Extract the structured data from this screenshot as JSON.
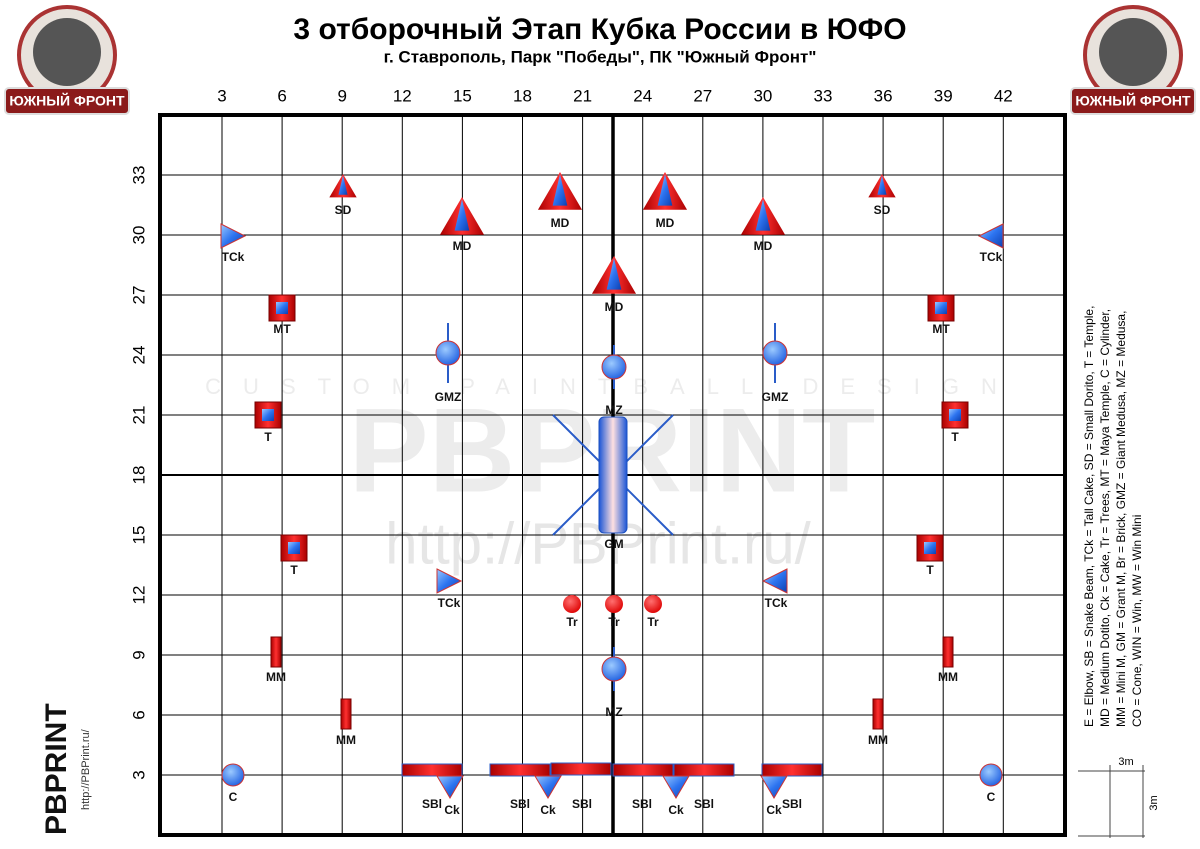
{
  "header": {
    "title": "3 отборочный Этап Кубка России в ЮФО",
    "subtitle": "г. Ставрополь, Парк \"Победы\", ПК \"Южный Фронт\""
  },
  "logos": {
    "left": "ЮЖНЫЙ ФРОНТ",
    "right": "ЮЖНЫЙ ФРОНТ"
  },
  "x_labels": [
    "3",
    "6",
    "9",
    "12",
    "15",
    "18",
    "21",
    "24",
    "27",
    "30",
    "33",
    "36",
    "39",
    "42"
  ],
  "y_labels": [
    "33",
    "30",
    "27",
    "24",
    "21",
    "18",
    "15",
    "12",
    "9",
    "6",
    "3"
  ],
  "bunkers": [
    "SD",
    "SD",
    "MD",
    "MD",
    "MD",
    "MD",
    "MD",
    "TCk",
    "TCk",
    "MT",
    "MT",
    "GMZ",
    "GMZ",
    "MZ",
    "T",
    "T",
    "GM",
    "T",
    "T",
    "TCk",
    "TCk",
    "Tr",
    "Tr",
    "Tr",
    "MZ",
    "MM",
    "MM",
    "MM",
    "MM",
    "C",
    "C",
    "SBl",
    "SBl",
    "SBl",
    "SBl",
    "SBl",
    "SBl",
    "Ck",
    "Ck",
    "Ck",
    "Ck"
  ],
  "watermark": {
    "brand": "PBPRINT",
    "tagline": "CUSTOM PAINTBALL DESIGN",
    "url": "http://PBPrint.ru/"
  },
  "legend": [
    "E = Elbow, SB = Snake Beam, TCk = Tall Cake, SD = Small Dorito, T = Temple,",
    "MD = Medium Dotito, Ck = Cake, Tr = Trees, MT = Maya Temple, C = Cylinder,",
    "MM = Mini M, GM = Grant M, Br = Brick, GMZ = Giant Medusa, MZ = Medusa,",
    "CO = Cone, WIN = Win, MW = Win Mini"
  ],
  "scale": {
    "top": "3m",
    "side": "3m"
  },
  "side_logo": {
    "brand": "PBPRINT",
    "url": "http://PBPrint.ru/"
  }
}
